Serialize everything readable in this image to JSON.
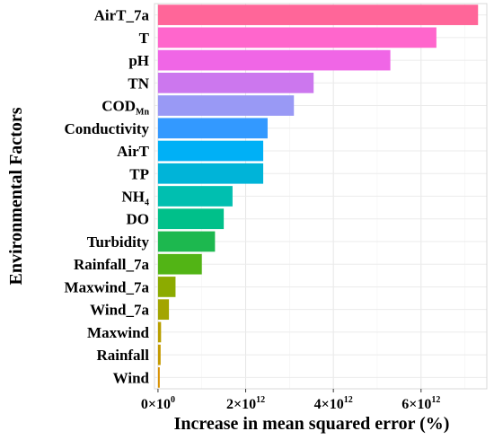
{
  "chart_data": {
    "type": "bar",
    "orientation": "horizontal",
    "xlabel": "Increase in mean squared error (%)",
    "ylabel": "Environmental Factors",
    "xlim": [
      -80000000000.0,
      7500000000000.0
    ],
    "grid": true,
    "x_ticks": [
      {
        "value": 0,
        "mantissa": "0×10",
        "exp": "0"
      },
      {
        "value": 2000000000000.0,
        "mantissa": "2×10",
        "exp": "12"
      },
      {
        "value": 4000000000000.0,
        "mantissa": "4×10",
        "exp": "12"
      },
      {
        "value": 6000000000000.0,
        "mantissa": "6×10",
        "exp": "12"
      }
    ],
    "categories": [
      {
        "label": "AirT_7a",
        "sub": "",
        "value": 7300000000000.0,
        "color": "#FF6699"
      },
      {
        "label": "T",
        "sub": "",
        "value": 6350000000000.0,
        "color": "#FF66CC"
      },
      {
        "label": "pH",
        "sub": "",
        "value": 5300000000000.0,
        "color": "#F066E6"
      },
      {
        "label": "TN",
        "sub": "",
        "value": 3550000000000.0,
        "color": "#CC77EE"
      },
      {
        "label": "COD",
        "sub": "Mn",
        "value": 3100000000000.0,
        "color": "#9999F5"
      },
      {
        "label": "Conductivity",
        "sub": "",
        "value": 2500000000000.0,
        "color": "#3399FF"
      },
      {
        "label": "AirT",
        "sub": "",
        "value": 2400000000000.0,
        "color": "#00B0F6"
      },
      {
        "label": "TP",
        "sub": "",
        "value": 2400000000000.0,
        "color": "#00B4D8"
      },
      {
        "label": "NH",
        "sub": "4",
        "value": 1700000000000.0,
        "color": "#00BFB0"
      },
      {
        "label": "DO",
        "sub": "",
        "value": 1500000000000.0,
        "color": "#00C08A"
      },
      {
        "label": "Turbidity",
        "sub": "",
        "value": 1300000000000.0,
        "color": "#1DB84F"
      },
      {
        "label": "Rainfall_7a",
        "sub": "",
        "value": 1000000000000.0,
        "color": "#52B415"
      },
      {
        "label": "Maxwind_7a",
        "sub": "",
        "value": 400000000000.0,
        "color": "#8CAB00"
      },
      {
        "label": "Wind_7a",
        "sub": "",
        "value": 250000000000.0,
        "color": "#A3A500"
      },
      {
        "label": "Maxwind",
        "sub": "",
        "value": 70000000000.0,
        "color": "#B99F00"
      },
      {
        "label": "Rainfall",
        "sub": "",
        "value": 60000000000.0,
        "color": "#C49A00"
      },
      {
        "label": "Wind",
        "sub": "",
        "value": 40000000000.0,
        "color": "#D89000"
      }
    ]
  }
}
